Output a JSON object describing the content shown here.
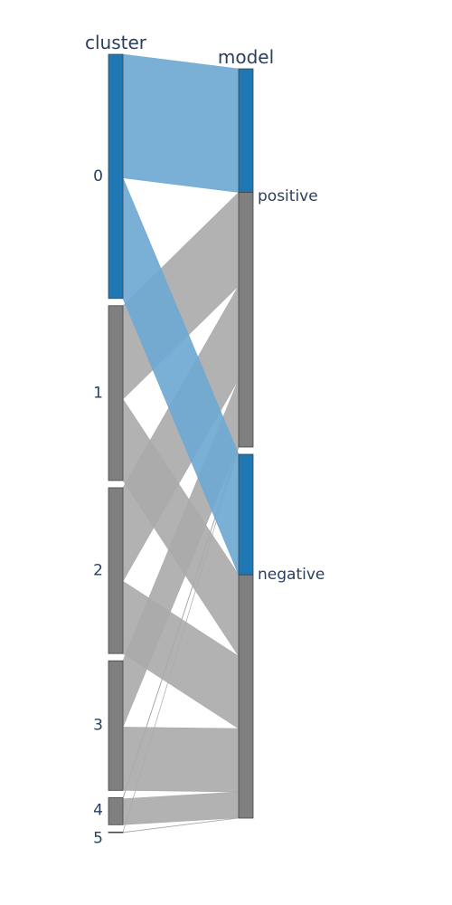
{
  "chart_data": {
    "type": "parallel_categories",
    "dimensions": [
      {
        "label": "cluster",
        "categories": [
          "0",
          "1",
          "2",
          "3",
          "4",
          "5"
        ]
      },
      {
        "label": "model",
        "categories": [
          "positive",
          "negative"
        ]
      }
    ],
    "flows": [
      {
        "from": "0",
        "to": "positive",
        "count": 41,
        "color_group": "highlight"
      },
      {
        "from": "0",
        "to": "negative",
        "count": 40,
        "color_group": "highlight"
      },
      {
        "from": "1",
        "to": "positive",
        "count": 31,
        "color_group": "base"
      },
      {
        "from": "1",
        "to": "negative",
        "count": 27,
        "color_group": "base"
      },
      {
        "from": "2",
        "to": "positive",
        "count": 31,
        "color_group": "base"
      },
      {
        "from": "2",
        "to": "negative",
        "count": 24,
        "color_group": "base"
      },
      {
        "from": "3",
        "to": "positive",
        "count": 22,
        "color_group": "base"
      },
      {
        "from": "3",
        "to": "negative",
        "count": 21,
        "color_group": "base"
      },
      {
        "from": "4",
        "to": "positive",
        "count": 0.4,
        "color_group": "base"
      },
      {
        "from": "4",
        "to": "negative",
        "count": 8.6,
        "color_group": "base"
      },
      {
        "from": "5",
        "to": "positive",
        "count": 0.1,
        "color_group": "base"
      },
      {
        "from": "5",
        "to": "negative",
        "count": 0.1,
        "color_group": "base"
      }
    ],
    "colors": {
      "highlight": "#1f77b4",
      "base": "#808080",
      "highlight_ribbon": "#6fa8d3",
      "base_ribbon": "#aaaaaa",
      "label": "#2a3f5f"
    }
  }
}
